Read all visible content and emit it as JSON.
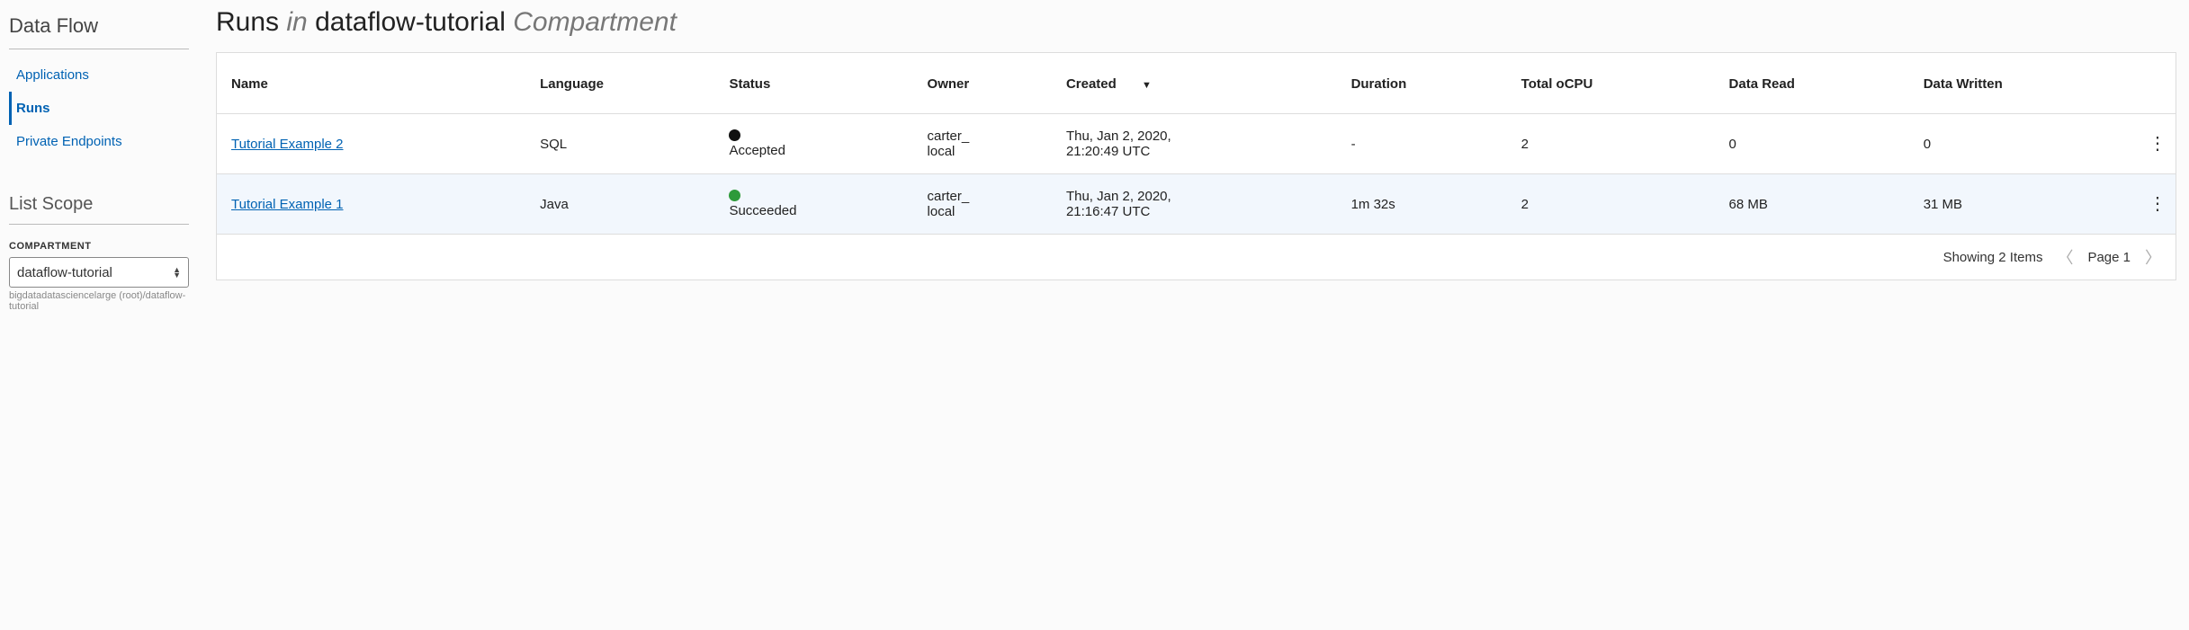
{
  "colors": {
    "link": "#0062b3",
    "border": "#dddddd",
    "muted": "#777777",
    "row_hover": "#f2f7fd",
    "status_accepted": "#111111",
    "status_succeeded": "#2e9a3a"
  },
  "sidebar": {
    "title": "Data Flow",
    "nav": [
      {
        "label": "Applications",
        "active": false
      },
      {
        "label": "Runs",
        "active": true
      },
      {
        "label": "Private Endpoints",
        "active": false
      }
    ],
    "scope_title": "List Scope",
    "compartment_label": "COMPARTMENT",
    "compartment_value": "dataflow-tutorial",
    "compartment_hint": "bigdatadatasciencelarge (root)/dataflow-tutorial"
  },
  "header": {
    "prefix": "Runs",
    "in": "in",
    "name": "dataflow-tutorial",
    "suffix": "Compartment"
  },
  "table": {
    "columns": {
      "name": "Name",
      "language": "Language",
      "status": "Status",
      "owner": "Owner",
      "created": "Created",
      "duration": "Duration",
      "total_ocpu": "Total oCPU",
      "data_read": "Data Read",
      "data_written": "Data Written"
    },
    "sort_column": "created",
    "sort_dir": "desc",
    "rows": [
      {
        "name": "Tutorial Example 2",
        "language": "SQL",
        "status": "Accepted",
        "status_color": "#111111",
        "owner": "carter_local",
        "created": "Thu, Jan 2, 2020, 21:20:49 UTC",
        "duration": "-",
        "total_ocpu": "2",
        "data_read": "0",
        "data_written": "0",
        "hover": false
      },
      {
        "name": "Tutorial Example 1",
        "language": "Java",
        "status": "Succeeded",
        "status_color": "#2e9a3a",
        "owner": "carter_local",
        "created": "Thu, Jan 2, 2020, 21:16:47 UTC",
        "duration": "1m 32s",
        "total_ocpu": "2",
        "data_read": "68 MB",
        "data_written": "31 MB",
        "hover": true
      }
    ]
  },
  "footer": {
    "showing": "Showing 2 Items",
    "page_label": "Page 1"
  }
}
